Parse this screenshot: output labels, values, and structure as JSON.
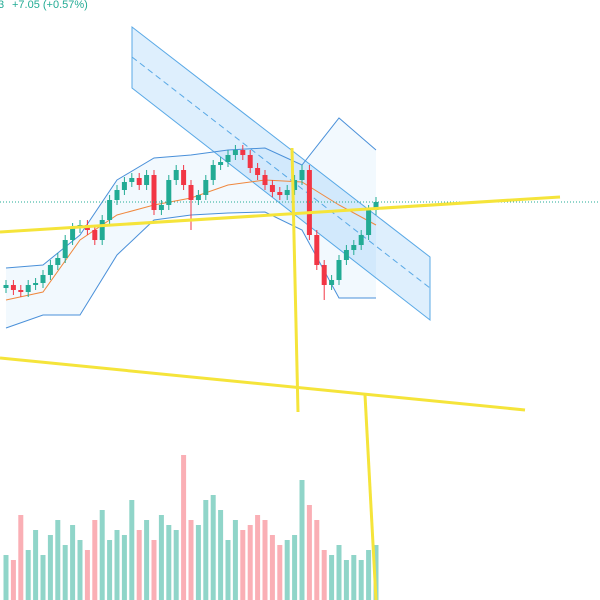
{
  "chart_data": {
    "type": "candlestick",
    "header_fragment": "3",
    "change_label": "+7.05 (+0.57%)",
    "ylim": [
      0,
      600
    ],
    "open": [
      312,
      315,
      310,
      308,
      315,
      317,
      325,
      335,
      342,
      360,
      372,
      375,
      370,
      360,
      380,
      400,
      410,
      418,
      422,
      415,
      425,
      390,
      395,
      420,
      430,
      415,
      400,
      405,
      420,
      435,
      438,
      445,
      450,
      445,
      432,
      425,
      415,
      408,
      405,
      410,
      420,
      430,
      365,
      335,
      315,
      320,
      340,
      350,
      355,
      365,
      390
    ],
    "high": [
      320,
      320,
      315,
      320,
      322,
      330,
      340,
      347,
      365,
      377,
      380,
      380,
      375,
      385,
      405,
      415,
      423,
      427,
      427,
      430,
      430,
      400,
      425,
      435,
      435,
      420,
      410,
      425,
      440,
      443,
      450,
      455,
      455,
      450,
      437,
      430,
      420,
      413,
      415,
      425,
      435,
      435,
      370,
      340,
      325,
      345,
      355,
      360,
      370,
      395,
      403
    ],
    "low": [
      307,
      305,
      303,
      303,
      310,
      312,
      320,
      330,
      337,
      355,
      367,
      365,
      355,
      355,
      375,
      395,
      405,
      413,
      410,
      410,
      385,
      385,
      390,
      415,
      410,
      370,
      395,
      400,
      415,
      430,
      433,
      440,
      440,
      427,
      420,
      410,
      403,
      400,
      400,
      405,
      415,
      360,
      330,
      300,
      310,
      315,
      335,
      345,
      350,
      360,
      385
    ],
    "close": [
      315,
      310,
      308,
      315,
      317,
      325,
      335,
      342,
      360,
      372,
      375,
      370,
      360,
      380,
      400,
      410,
      418,
      422,
      415,
      425,
      390,
      395,
      420,
      430,
      415,
      400,
      405,
      420,
      435,
      438,
      445,
      450,
      445,
      432,
      425,
      415,
      408,
      405,
      410,
      420,
      430,
      365,
      335,
      315,
      320,
      340,
      350,
      355,
      365,
      390,
      398
    ],
    "up_color": "#22ab94",
    "down_color": "#f23645",
    "volume": [
      45,
      40,
      85,
      50,
      70,
      45,
      65,
      80,
      55,
      75,
      60,
      50,
      80,
      90,
      60,
      70,
      65,
      100,
      70,
      80,
      60,
      85,
      75,
      70,
      145,
      80,
      75,
      100,
      105,
      90,
      60,
      80,
      70,
      75,
      85,
      80,
      65,
      55,
      60,
      65,
      120,
      95,
      80,
      50,
      45,
      55,
      40,
      45,
      40,
      50,
      55
    ],
    "volume_ylim": [
      0,
      600
    ],
    "indicators": {
      "x": [
        0,
        5,
        10,
        15,
        20,
        25,
        30,
        35,
        40,
        45,
        50
      ],
      "series": [
        {
          "name": "upper",
          "color": "#4a90d9",
          "values": [
            332,
            335,
            365,
            420,
            442,
            445,
            450,
            452,
            435,
            482,
            450
          ]
        },
        {
          "name": "lower",
          "color": "#4a90d9",
          "values": [
            272,
            285,
            285,
            345,
            380,
            385,
            387,
            388,
            370,
            302,
            302
          ]
        },
        {
          "name": "basis",
          "color": "#f0883e",
          "values": [
            300,
            308,
            360,
            385,
            395,
            402,
            415,
            420,
            418,
            395,
            375
          ]
        }
      ]
    }
  }
}
